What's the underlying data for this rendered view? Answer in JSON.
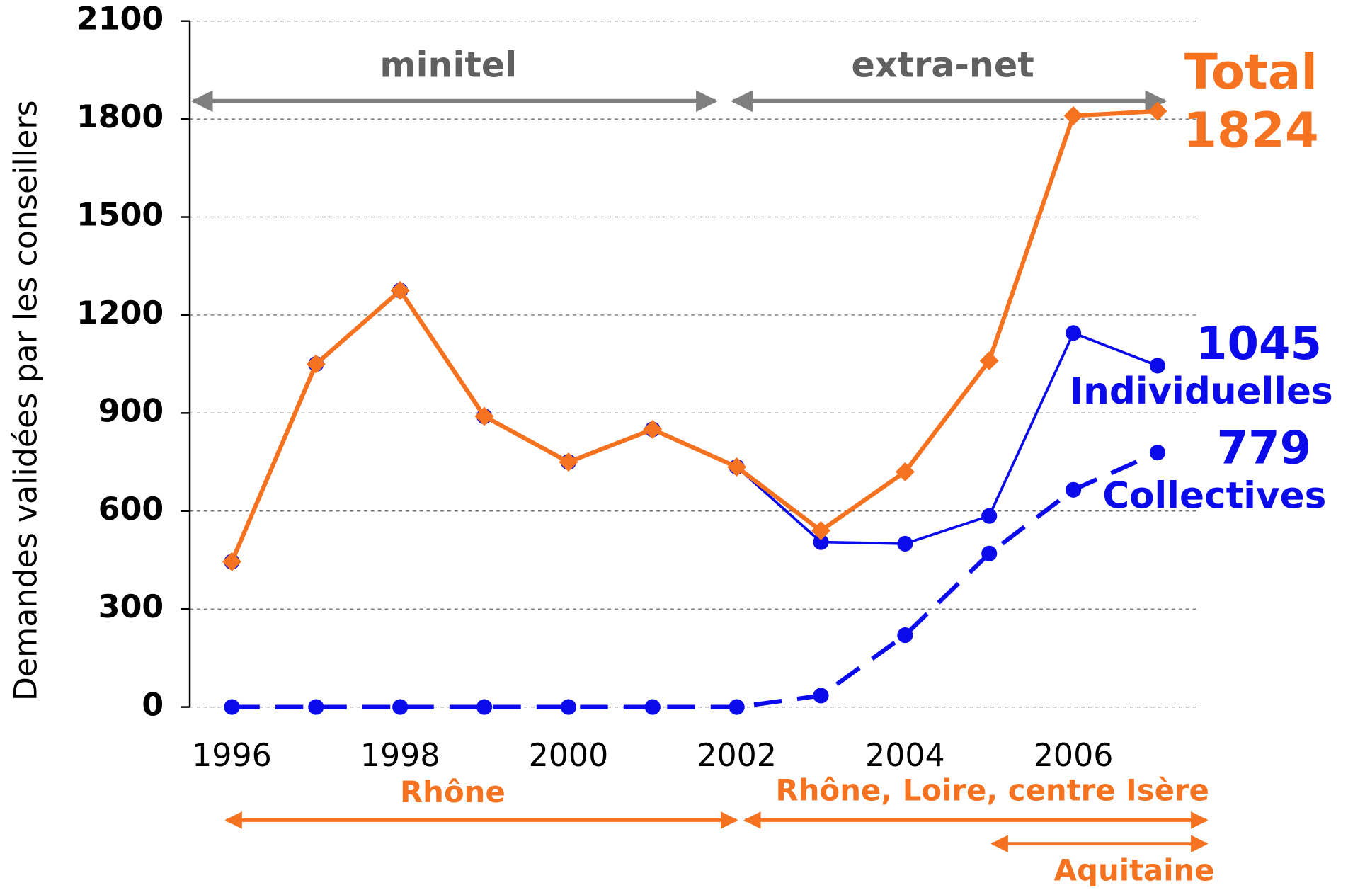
{
  "chart_data": {
    "type": "line",
    "y_label": "Demandes validées par les conseillers",
    "x": [
      1996,
      1997,
      1998,
      1999,
      2000,
      2001,
      2002,
      2003,
      2004,
      2005,
      2006,
      2007
    ],
    "xlim": [
      1995.5,
      2007.5
    ],
    "xticks": [
      1996,
      1998,
      2000,
      2002,
      2004,
      2006
    ],
    "ylim": [
      0,
      2100
    ],
    "yticks": [
      0,
      300,
      600,
      900,
      1200,
      1500,
      1800,
      2100
    ],
    "grid": true,
    "series": [
      {
        "name": "Total",
        "color": "#f57320",
        "values": [
          445,
          1050,
          1275,
          890,
          750,
          850,
          735,
          540,
          720,
          1060,
          1810,
          1824
        ]
      },
      {
        "name": "Individuelles",
        "color": "#0a0aeb",
        "values": [
          445,
          1050,
          1275,
          890,
          750,
          850,
          735,
          505,
          500,
          585,
          1145,
          1045
        ]
      },
      {
        "name": "Collectives",
        "color": "#0a0aeb",
        "values": [
          0,
          0,
          0,
          0,
          0,
          0,
          0,
          35,
          220,
          470,
          665,
          779
        ],
        "dashed": true
      }
    ],
    "annotations": [
      "minitel",
      "extra-net",
      "Rhône",
      "Rhône, Loire, centre Isère",
      "Aquitaine"
    ]
  }
}
